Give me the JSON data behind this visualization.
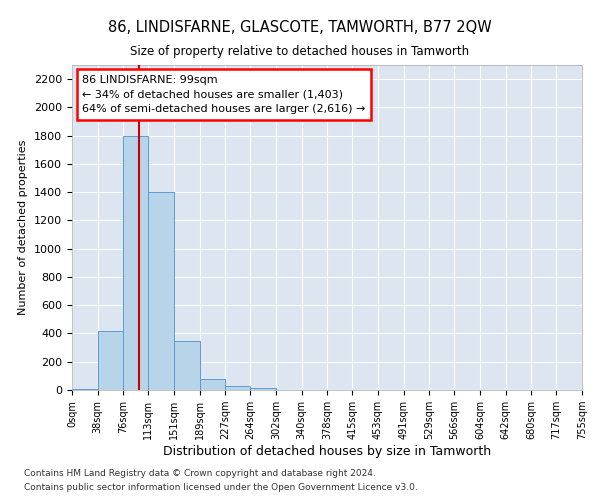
{
  "title": "86, LINDISFARNE, GLASCOTE, TAMWORTH, B77 2QW",
  "subtitle": "Size of property relative to detached houses in Tamworth",
  "xlabel": "Distribution of detached houses by size in Tamworth",
  "ylabel": "Number of detached properties",
  "footnote1": "Contains HM Land Registry data © Crown copyright and database right 2024.",
  "footnote2": "Contains public sector information licensed under the Open Government Licence v3.0.",
  "annotation_title": "86 LINDISFARNE: 99sqm",
  "annotation_line1": "← 34% of detached houses are smaller (1,403)",
  "annotation_line2": "64% of semi-detached houses are larger (2,616) →",
  "bar_color": "#b8d4e8",
  "bar_edge_color": "#5b9bd5",
  "background_color": "#dde6f0",
  "grid_color": "#ffffff",
  "bin_edges": [
    0,
    38,
    76,
    113,
    151,
    189,
    227,
    264,
    302,
    340,
    378,
    415,
    453,
    491,
    529,
    566,
    604,
    642,
    680,
    717,
    755
  ],
  "bin_labels": [
    "0sqm",
    "38sqm",
    "76sqm",
    "113sqm",
    "151sqm",
    "189sqm",
    "227sqm",
    "264sqm",
    "302sqm",
    "340sqm",
    "378sqm",
    "415sqm",
    "453sqm",
    "491sqm",
    "529sqm",
    "566sqm",
    "604sqm",
    "642sqm",
    "680sqm",
    "717sqm",
    "755sqm"
  ],
  "bar_heights": [
    10,
    420,
    1800,
    1400,
    350,
    80,
    30,
    15,
    0,
    0,
    0,
    0,
    0,
    0,
    0,
    0,
    0,
    0,
    0,
    0
  ],
  "property_sqm": 99,
  "vline_color": "#cc0000",
  "ylim": [
    0,
    2300
  ],
  "yticks": [
    0,
    200,
    400,
    600,
    800,
    1000,
    1200,
    1400,
    1600,
    1800,
    2000,
    2200
  ]
}
